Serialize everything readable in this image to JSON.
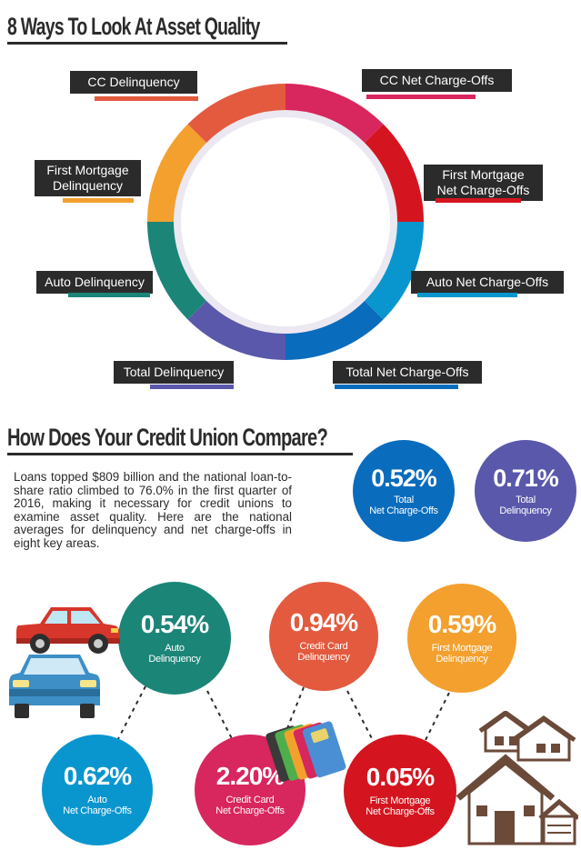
{
  "headings": {
    "section1": "8 Ways To Look At Asset Quality",
    "section2": "How Does Your Credit Union Compare?"
  },
  "donut_labels": {
    "cc_delinquency": "CC Delinquency",
    "cc_net_charge_offs": "CC Net Charge-Offs",
    "first_mortgage_delinquency": "First Mortgage\nDelinquency",
    "first_mortgage_net_charge_offs": "First Mortgage\nNet Charge-Offs",
    "auto_delinquency": "Auto Delinquency",
    "auto_net_charge_offs": "Auto Net Charge-Offs",
    "total_delinquency": "Total Delinquency",
    "total_net_charge_offs": "Total Net Charge-Offs"
  },
  "colors": {
    "cc_delinquency": "#e35a3e",
    "cc_net_charge_offs": "#d8265e",
    "first_mortgage_delinquency": "#f3a02e",
    "first_mortgage_net_charge_offs": "#d4151f",
    "auto_delinquency": "#1b8578",
    "auto_net_charge_offs": "#0996cf",
    "total_delinquency": "#5a58ab",
    "total_net_charge_offs": "#0a6cbd"
  },
  "intro_text": "Loans topped $809 billion and the national loan-to-share ratio climbed to 76.0% in the first quarter of 2016, making it necessary for credit unions to examine asset quality. Here are the national averages for delinquency and net charge-offs in eight key areas.",
  "totals": {
    "net_charge_offs": {
      "value": "0.52%",
      "label": "Total\nNet Charge-Offs"
    },
    "delinquency": {
      "value": "0.71%",
      "label": "Total\nDelinquency"
    }
  },
  "metrics": {
    "auto_delinquency": {
      "value": "0.54%",
      "label": "Auto\nDelinquency"
    },
    "credit_card_delinquency": {
      "value": "0.94%",
      "label": "Credit Card\nDelinquency"
    },
    "first_mortgage_delinquency": {
      "value": "0.59%",
      "label": "First Mortgage\nDelinquency"
    },
    "auto_net_charge_offs": {
      "value": "0.62%",
      "label": "Auto\nNet Charge-Offs"
    },
    "credit_card_net_charge_offs": {
      "value": "2.20%",
      "label": "Credit Card\nNet Charge-Offs"
    },
    "first_mortgage_net_charge_offs": {
      "value": "0.05%",
      "label": "First Mortgage\nNet Charge-Offs"
    }
  },
  "icons": [
    "red-car-icon",
    "blue-car-icon",
    "credit-cards-icon",
    "houses-icon"
  ]
}
